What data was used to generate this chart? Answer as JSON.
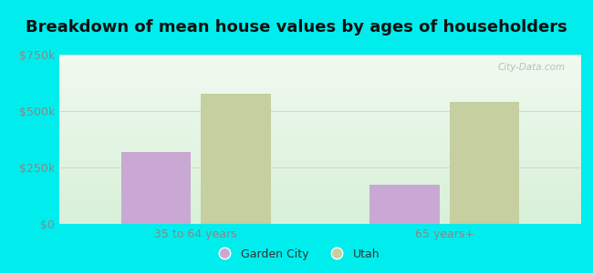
{
  "title": "Breakdown of mean house values by ages of householders",
  "categories": [
    "35 to 64 years",
    "65 years+"
  ],
  "garden_city_values": [
    320000,
    175000
  ],
  "utah_values": [
    575000,
    540000
  ],
  "garden_city_color": "#c9a8d4",
  "utah_color": "#c5cfa0",
  "background_color": "#00eded",
  "ylim": [
    0,
    750000
  ],
  "yticks": [
    0,
    250000,
    500000,
    750000
  ],
  "ytick_labels": [
    "$0",
    "$250k",
    "$500k",
    "$750k"
  ],
  "legend_labels": [
    "Garden City",
    "Utah"
  ],
  "bar_width": 0.28,
  "title_fontsize": 13,
  "tick_fontsize": 9,
  "legend_fontsize": 9,
  "tick_color": "#888888",
  "title_color": "#111111",
  "watermark_text": "City-Data.com",
  "grid_color": "#ccddcc"
}
